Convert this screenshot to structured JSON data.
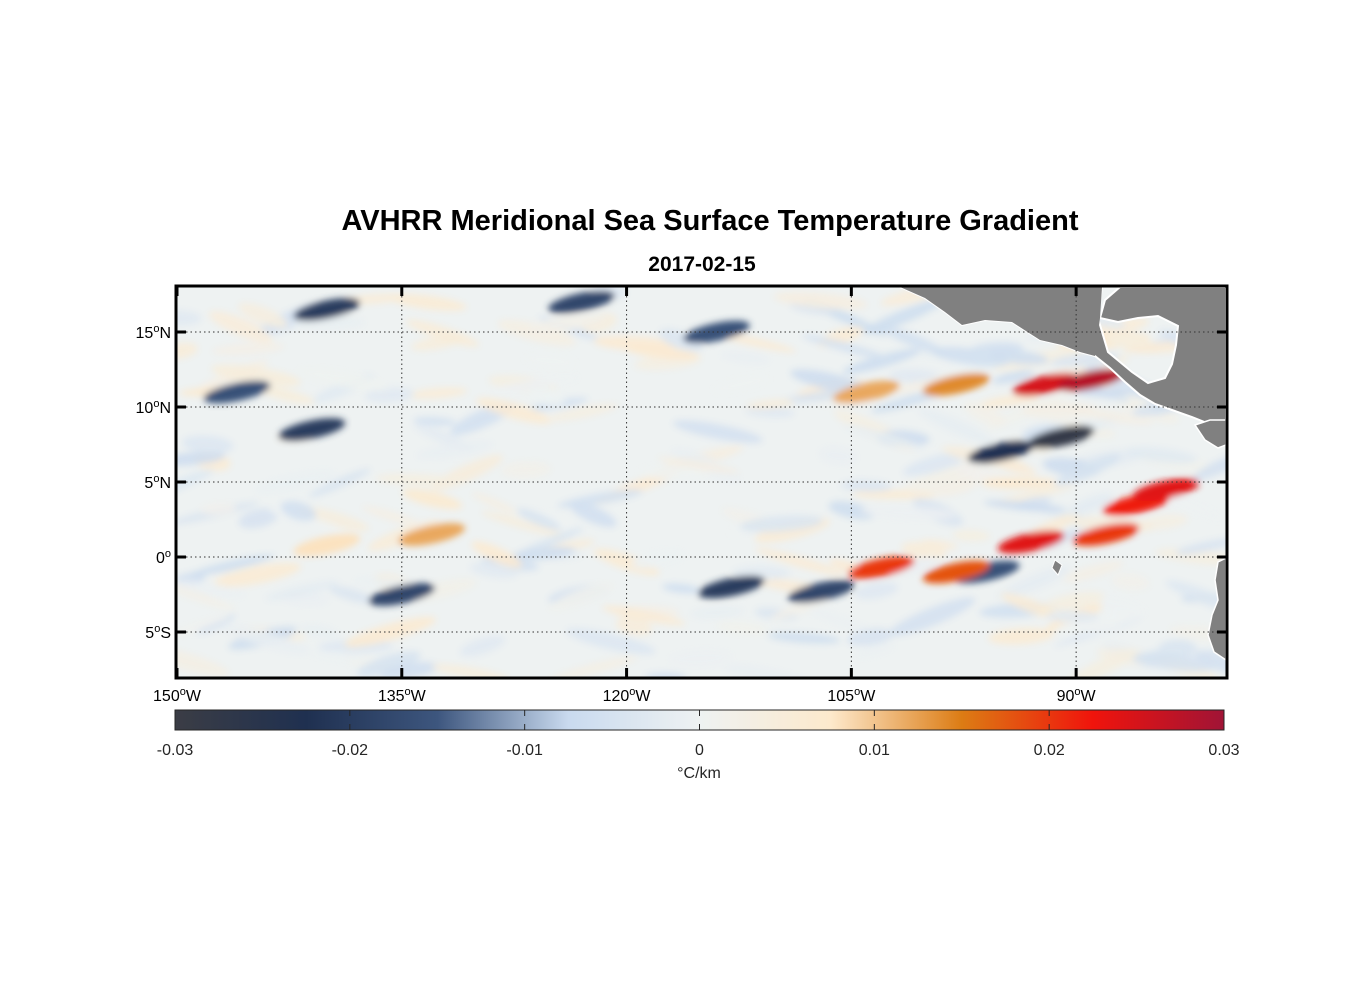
{
  "figure": {
    "title": "AVHRR Meridional Sea Surface Temperature Gradient",
    "subtitle": "2017-02-15"
  },
  "map": {
    "lon_range": [
      -150,
      -80
    ],
    "lat_range": [
      -8,
      18
    ],
    "grid": true,
    "land_color": "#808080",
    "lat_ticks": [
      {
        "value": 15,
        "num": "15",
        "hemi": "N"
      },
      {
        "value": 10,
        "num": "10",
        "hemi": "N"
      },
      {
        "value": 5,
        "num": "5",
        "hemi": "N"
      },
      {
        "value": 0,
        "num": "0",
        "hemi": ""
      },
      {
        "value": -5,
        "num": "5",
        "hemi": "S"
      }
    ],
    "lon_ticks": [
      {
        "value": -150,
        "num": "150",
        "hemi": "W"
      },
      {
        "value": -135,
        "num": "135",
        "hemi": "W"
      },
      {
        "value": -120,
        "num": "120",
        "hemi": "W"
      },
      {
        "value": -105,
        "num": "105",
        "hemi": "W"
      },
      {
        "value": -90,
        "num": "90",
        "hemi": "W"
      }
    ],
    "degree_symbol": "o"
  },
  "colorbar": {
    "min": -0.03,
    "max": 0.03,
    "ticks": [
      "-0.03",
      "-0.02",
      "-0.01",
      "0",
      "0.01",
      "0.02",
      "0.03"
    ],
    "label": "°C/km",
    "stops": [
      "#3b3d45",
      "#1f3050",
      "#3d567e",
      "#c9daef",
      "#eef2f2",
      "#fde9cc",
      "#dc7c14",
      "#f0140c",
      "#a01436"
    ]
  },
  "chart_data": {
    "type": "heatmap",
    "title": "AVHRR Meridional Sea Surface Temperature Gradient",
    "subtitle": "2017-02-15",
    "variable": "meridional SST gradient",
    "units": "°C/km",
    "value_range": [
      -0.03,
      0.03
    ],
    "features": [
      {
        "lon": -140,
        "lat": 16.5,
        "value": -0.02
      },
      {
        "lon": -123,
        "lat": 17.0,
        "value": -0.018
      },
      {
        "lon": -114,
        "lat": 15.0,
        "value": -0.016
      },
      {
        "lon": -146,
        "lat": 11.0,
        "value": -0.016
      },
      {
        "lon": -141,
        "lat": 8.5,
        "value": -0.02
      },
      {
        "lon": -92,
        "lat": 11.5,
        "value": 0.025
      },
      {
        "lon": -89,
        "lat": 11.8,
        "value": 0.028
      },
      {
        "lon": -91,
        "lat": 8.0,
        "value": -0.028
      },
      {
        "lon": -95,
        "lat": 7.0,
        "value": -0.022
      },
      {
        "lon": -86,
        "lat": 3.5,
        "value": 0.022
      },
      {
        "lon": -84,
        "lat": 4.5,
        "value": 0.024
      },
      {
        "lon": -93,
        "lat": 1.0,
        "value": 0.024
      },
      {
        "lon": -88,
        "lat": 1.5,
        "value": 0.02
      },
      {
        "lon": -113,
        "lat": -2.0,
        "value": -0.02
      },
      {
        "lon": -107,
        "lat": -2.3,
        "value": -0.018
      },
      {
        "lon": -96,
        "lat": -1.0,
        "value": -0.016
      },
      {
        "lon": -98,
        "lat": -1.0,
        "value": 0.018
      },
      {
        "lon": -103,
        "lat": -0.7,
        "value": 0.02
      },
      {
        "lon": -133,
        "lat": 1.5,
        "value": 0.012
      },
      {
        "lon": -140,
        "lat": 0.8,
        "value": 0.008
      },
      {
        "lon": -135,
        "lat": -2.5,
        "value": -0.018
      },
      {
        "lon": -104,
        "lat": 11.0,
        "value": 0.012
      },
      {
        "lon": -98,
        "lat": 11.5,
        "value": 0.014
      }
    ]
  }
}
